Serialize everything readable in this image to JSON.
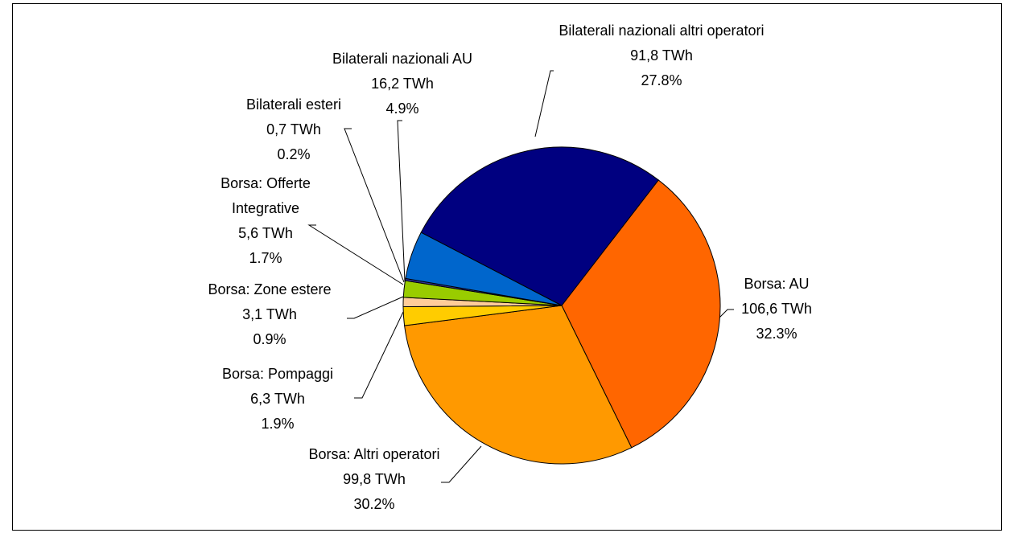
{
  "chart_data": {
    "type": "pie",
    "categories": [
      "Borsa: AU",
      "Borsa: Altri operatori",
      "Borsa: Pompaggi",
      "Borsa: Zone estere",
      "Borsa: Offerte Integrative",
      "Bilaterali esteri",
      "Bilaterali nazionali AU",
      "Bilaterali nazionali altri operatori"
    ],
    "values": [
      106.6,
      99.8,
      6.3,
      3.1,
      5.6,
      0.7,
      16.2,
      91.8
    ],
    "value_labels": [
      "106,6 TWh",
      "99,8 TWh",
      "6,3 TWh",
      "3,1 TWh",
      "5,6 TWh",
      "0,7 TWh",
      "16,2 TWh",
      "91,8 TWh"
    ],
    "percentages": [
      32.3,
      30.2,
      1.9,
      0.9,
      1.7,
      0.2,
      4.9,
      27.8
    ],
    "percentage_labels": [
      "32.3%",
      "30.2%",
      "1.9%",
      "0.9%",
      "1.7%",
      "0.2%",
      "4.9%",
      "27.8%"
    ],
    "colors": [
      "#ff6600",
      "#ff9900",
      "#ffcc00",
      "#ffcc99",
      "#99cc00",
      "#333399",
      "#0066cc",
      "#000080"
    ]
  }
}
